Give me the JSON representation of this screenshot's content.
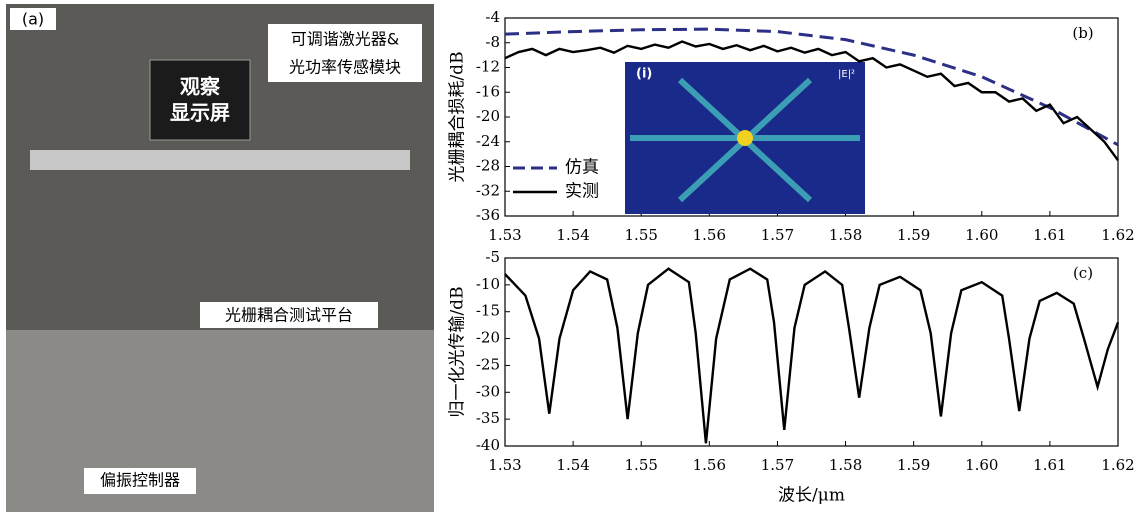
{
  "photo": {
    "panel_label": "(a)",
    "labels": [
      "可调谐激光器&",
      "光功率传感模块",
      "观察",
      "显示屏",
      "光栅耦合测试平台",
      "偏振控制器"
    ]
  },
  "chart_data": [
    {
      "type": "line",
      "panel_label": "(b)",
      "ylabel": "光栅耦合损耗/dB",
      "inset_labels": [
        "(i)",
        "|E|²"
      ],
      "legend": "lower left",
      "xlim": [
        1.53,
        1.62
      ],
      "xticks": [
        1.53,
        1.54,
        1.55,
        1.56,
        1.57,
        1.58,
        1.59,
        {
          "value": 1.6,
          "label": "1.60"
        },
        1.61,
        1.62
      ],
      "ylim": [
        -36,
        -4
      ],
      "yticks": [
        -4,
        -8,
        -12,
        -16,
        -20,
        -24,
        -28,
        -32,
        -36
      ],
      "series": [
        {
          "name": "仿真",
          "color": "#2b2f86",
          "dashed": true,
          "x": [
            1.53,
            1.54,
            1.55,
            1.56,
            1.57,
            1.58,
            1.59,
            1.6,
            1.61,
            1.62
          ],
          "values": [
            -6.6,
            -6.2,
            -5.9,
            -5.8,
            -6.2,
            -7.5,
            -10,
            -13.5,
            -18.5,
            -24.5
          ]
        },
        {
          "name": "实测",
          "color": "#000000",
          "dashed": false,
          "x": [
            1.53,
            1.532,
            1.534,
            1.536,
            1.538,
            1.54,
            1.542,
            1.544,
            1.546,
            1.548,
            1.55,
            1.552,
            1.554,
            1.556,
            1.558,
            1.56,
            1.562,
            1.564,
            1.566,
            1.568,
            1.57,
            1.572,
            1.574,
            1.576,
            1.578,
            1.58,
            1.582,
            1.584,
            1.586,
            1.588,
            1.59,
            1.592,
            1.594,
            1.596,
            1.598,
            1.6,
            1.602,
            1.604,
            1.606,
            1.608,
            1.61,
            1.612,
            1.614,
            1.616,
            1.618,
            1.62
          ],
          "values": [
            -10.5,
            -9.5,
            -9,
            -10,
            -9,
            -9.5,
            -9.2,
            -8.8,
            -9.6,
            -8.5,
            -9,
            -8.3,
            -8.8,
            -7.8,
            -8.6,
            -8.2,
            -9,
            -8.4,
            -9.2,
            -8.5,
            -9.4,
            -8.8,
            -9.6,
            -9,
            -10,
            -9.5,
            -11,
            -10.5,
            -12,
            -11.5,
            -12.5,
            -13.5,
            -13,
            -15,
            -14.5,
            -16,
            -16,
            -17.5,
            -17,
            -19,
            -18,
            -21,
            -20,
            -22,
            -24,
            -27
          ]
        }
      ]
    },
    {
      "type": "line",
      "panel_label": "(c)",
      "ylabel": "归一化光传输/dB",
      "xlabel": "波长/μm",
      "xlim": [
        1.53,
        1.62
      ],
      "xticks": [
        1.53,
        1.54,
        1.55,
        1.56,
        1.57,
        1.58,
        1.59,
        {
          "value": 1.6,
          "label": "1.60"
        },
        1.61,
        1.62
      ],
      "ylim": [
        -40,
        -5
      ],
      "yticks": [
        -5,
        -10,
        -15,
        -20,
        -25,
        -30,
        -35,
        -40
      ],
      "series": [
        {
          "color": "#000000",
          "dashed": false,
          "x": [
            1.53,
            1.533,
            1.535,
            1.5365,
            1.538,
            1.54,
            1.5425,
            1.545,
            1.5465,
            1.548,
            1.5495,
            1.551,
            1.554,
            1.557,
            1.558,
            1.5595,
            1.561,
            1.563,
            1.566,
            1.5685,
            1.5695,
            1.571,
            1.5725,
            1.574,
            1.577,
            1.5795,
            1.5805,
            1.582,
            1.5835,
            1.585,
            1.588,
            1.591,
            1.5925,
            1.594,
            1.5955,
            1.597,
            1.6,
            1.603,
            1.604,
            1.6055,
            1.607,
            1.6085,
            1.611,
            1.6135,
            1.615,
            1.617,
            1.6185,
            1.62
          ],
          "values": [
            -8,
            -12,
            -20,
            -34,
            -20,
            -11,
            -7.5,
            -9,
            -18,
            -35,
            -19,
            -10,
            -7,
            -9.5,
            -19,
            -39.5,
            -20,
            -9,
            -7,
            -9,
            -17,
            -37,
            -18,
            -10,
            -7.5,
            -10,
            -18,
            -31,
            -18,
            -10,
            -8.5,
            -11,
            -19,
            -34.5,
            -19,
            -11,
            -9.5,
            -12,
            -20,
            -33.5,
            -20,
            -13,
            -11.5,
            -13.5,
            -20,
            -29,
            -22,
            -17
          ]
        }
      ]
    }
  ]
}
